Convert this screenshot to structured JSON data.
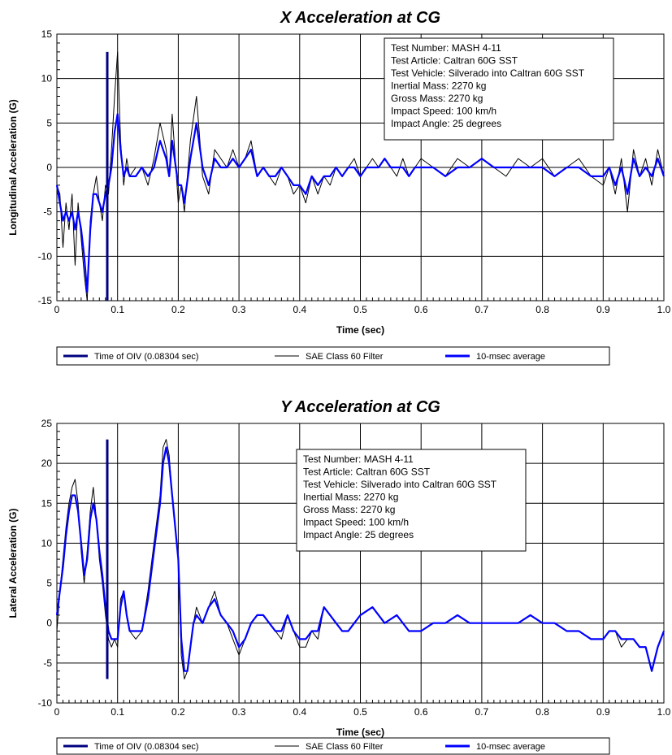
{
  "chart_data": [
    {
      "type": "line",
      "title": "X Acceleration at CG",
      "xlabel": "Time (sec)",
      "ylabel": "Longitudinal Acceleration (G)",
      "xlim": [
        0,
        1.0
      ],
      "ylim": [
        -15,
        15
      ],
      "xticks": [
        "0",
        "0.1",
        "0.2",
        "0.3",
        "0.4",
        "0.5",
        "0.6",
        "0.7",
        "0.8",
        "0.9",
        "1.0"
      ],
      "yticks": [
        "-15",
        "-10",
        "-5",
        "0",
        "5",
        "10",
        "15"
      ],
      "grid": true,
      "legend_placement": "bottom",
      "info_box": [
        "Test Number: MASH 4-11",
        "Test Article: Caltran 60G SST",
        "Test Vehicle: Silverado into Caltran 60G SST",
        "Inertial Mass: 2270 kg",
        "Gross Mass: 2270 kg",
        "Impact Speed: 100 km/h",
        "Impact Angle: 25 degrees"
      ],
      "series": [
        {
          "name": "Time of OIV (0.08304 sec)",
          "color": "#000080",
          "x": [
            0.083,
            0.083
          ],
          "y": [
            -15,
            13
          ]
        },
        {
          "name": "SAE Class 60 Filter",
          "color": "#000000",
          "x": [
            0,
            0.005,
            0.01,
            0.015,
            0.02,
            0.025,
            0.03,
            0.035,
            0.04,
            0.045,
            0.05,
            0.055,
            0.06,
            0.065,
            0.07,
            0.075,
            0.08,
            0.085,
            0.09,
            0.095,
            0.1,
            0.105,
            0.11,
            0.115,
            0.12,
            0.13,
            0.14,
            0.15,
            0.16,
            0.17,
            0.18,
            0.185,
            0.19,
            0.2,
            0.205,
            0.21,
            0.22,
            0.23,
            0.24,
            0.25,
            0.26,
            0.27,
            0.28,
            0.29,
            0.3,
            0.31,
            0.32,
            0.33,
            0.34,
            0.35,
            0.36,
            0.37,
            0.38,
            0.39,
            0.4,
            0.41,
            0.42,
            0.43,
            0.44,
            0.45,
            0.46,
            0.47,
            0.48,
            0.49,
            0.5,
            0.51,
            0.52,
            0.53,
            0.54,
            0.55,
            0.56,
            0.57,
            0.58,
            0.59,
            0.6,
            0.62,
            0.64,
            0.66,
            0.68,
            0.7,
            0.72,
            0.74,
            0.76,
            0.78,
            0.8,
            0.82,
            0.84,
            0.86,
            0.88,
            0.9,
            0.91,
            0.92,
            0.93,
            0.94,
            0.95,
            0.96,
            0.97,
            0.98,
            0.99,
            1.0
          ],
          "y": [
            -2,
            -3,
            -9,
            -4,
            -7,
            -3,
            -11,
            -4,
            -8,
            -12,
            -15,
            -6,
            -3,
            -1,
            -4,
            -6,
            -2,
            -3,
            2,
            8,
            13,
            3,
            -2,
            1,
            -1,
            0,
            0,
            -2,
            1,
            5,
            2,
            -1,
            6,
            -4,
            -2,
            -5,
            3,
            8,
            -1,
            -3,
            2,
            1,
            0,
            2,
            0,
            1,
            3,
            -1,
            0,
            -1,
            -2,
            0,
            -1,
            -3,
            -2,
            -4,
            -1,
            -3,
            -1,
            -2,
            0,
            -1,
            0,
            1,
            -1,
            0,
            1,
            0,
            1,
            0,
            -1,
            1,
            -1,
            0,
            1,
            0,
            -1,
            1,
            0,
            1,
            0,
            -1,
            1,
            0,
            1,
            -1,
            0,
            1,
            -1,
            -2,
            0,
            -3,
            1,
            -5,
            2,
            -1,
            1,
            -2,
            2,
            -1
          ]
        },
        {
          "name": "10-msec average",
          "color": "#0000ff",
          "x": [
            0,
            0.005,
            0.01,
            0.015,
            0.02,
            0.025,
            0.03,
            0.035,
            0.04,
            0.045,
            0.05,
            0.055,
            0.06,
            0.065,
            0.07,
            0.075,
            0.08,
            0.085,
            0.09,
            0.095,
            0.1,
            0.105,
            0.11,
            0.115,
            0.12,
            0.13,
            0.14,
            0.15,
            0.16,
            0.17,
            0.18,
            0.185,
            0.19,
            0.2,
            0.205,
            0.21,
            0.22,
            0.23,
            0.24,
            0.25,
            0.26,
            0.27,
            0.28,
            0.29,
            0.3,
            0.31,
            0.32,
            0.33,
            0.34,
            0.35,
            0.36,
            0.37,
            0.38,
            0.39,
            0.4,
            0.41,
            0.42,
            0.43,
            0.44,
            0.45,
            0.46,
            0.47,
            0.48,
            0.49,
            0.5,
            0.51,
            0.52,
            0.53,
            0.54,
            0.55,
            0.56,
            0.57,
            0.58,
            0.59,
            0.6,
            0.62,
            0.64,
            0.66,
            0.68,
            0.7,
            0.72,
            0.74,
            0.76,
            0.78,
            0.8,
            0.82,
            0.84,
            0.86,
            0.88,
            0.9,
            0.91,
            0.92,
            0.93,
            0.94,
            0.95,
            0.96,
            0.97,
            0.98,
            0.99,
            1.0
          ],
          "y": [
            -2,
            -4,
            -6,
            -5,
            -6,
            -5,
            -7,
            -5,
            -7,
            -10,
            -14,
            -7,
            -3,
            -3,
            -4,
            -5,
            -3,
            -2,
            0,
            4,
            6,
            2,
            -1,
            0,
            -1,
            -1,
            0,
            -1,
            0,
            3,
            1,
            -1,
            3,
            -2,
            -2,
            -4,
            1,
            5,
            0,
            -2,
            1,
            0,
            0,
            1,
            0,
            1,
            2,
            -1,
            0,
            -1,
            -1,
            0,
            -1,
            -2,
            -2,
            -3,
            -1,
            -2,
            -1,
            -1,
            0,
            -1,
            0,
            0,
            -1,
            0,
            0,
            0,
            1,
            0,
            0,
            0,
            -1,
            0,
            0,
            0,
            -1,
            0,
            0,
            1,
            0,
            0,
            0,
            0,
            0,
            -1,
            0,
            0,
            -1,
            -1,
            0,
            -2,
            0,
            -3,
            1,
            -1,
            0,
            -1,
            1,
            -1
          ]
        }
      ]
    },
    {
      "type": "line",
      "title": "Y Acceleration at CG",
      "xlabel": "Time (sec)",
      "ylabel": "Lateral Acceleration (G)",
      "xlim": [
        0,
        1.0
      ],
      "ylim": [
        -10,
        25
      ],
      "xticks": [
        "0",
        "0.1",
        "0.2",
        "0.3",
        "0.4",
        "0.5",
        "0.6",
        "0.7",
        "0.8",
        "0.9",
        "1.0"
      ],
      "yticks": [
        "-10",
        "-5",
        "0",
        "5",
        "10",
        "15",
        "20",
        "25"
      ],
      "grid": true,
      "legend_placement": "bottom",
      "info_box": [
        "Test Number: MASH 4-11",
        "Test Article: Caltran 60G SST",
        "Test Vehicle: Silverado into Caltran 60G SST",
        "Inertial Mass: 2270 kg",
        "Gross Mass: 2270 kg",
        "Impact Speed: 100 km/h",
        "Impact Angle: 25 degrees"
      ],
      "series": [
        {
          "name": "Time of OIV (0.08304 sec)",
          "color": "#000080",
          "x": [
            0.083,
            0.083
          ],
          "y": [
            -7,
            23
          ]
        },
        {
          "name": "SAE Class 60 Filter",
          "color": "#000000",
          "x": [
            0,
            0.005,
            0.01,
            0.015,
            0.02,
            0.025,
            0.03,
            0.035,
            0.04,
            0.045,
            0.05,
            0.055,
            0.06,
            0.065,
            0.07,
            0.075,
            0.08,
            0.085,
            0.09,
            0.095,
            0.1,
            0.105,
            0.11,
            0.115,
            0.12,
            0.13,
            0.14,
            0.15,
            0.16,
            0.17,
            0.175,
            0.18,
            0.185,
            0.19,
            0.2,
            0.205,
            0.21,
            0.215,
            0.22,
            0.225,
            0.23,
            0.24,
            0.25,
            0.26,
            0.27,
            0.28,
            0.29,
            0.3,
            0.31,
            0.32,
            0.33,
            0.34,
            0.35,
            0.36,
            0.37,
            0.38,
            0.39,
            0.4,
            0.41,
            0.42,
            0.43,
            0.44,
            0.45,
            0.46,
            0.47,
            0.48,
            0.49,
            0.5,
            0.52,
            0.54,
            0.56,
            0.58,
            0.6,
            0.62,
            0.64,
            0.66,
            0.68,
            0.7,
            0.72,
            0.74,
            0.76,
            0.78,
            0.8,
            0.82,
            0.84,
            0.86,
            0.88,
            0.9,
            0.91,
            0.92,
            0.93,
            0.94,
            0.95,
            0.96,
            0.97,
            0.98,
            0.99,
            1.0
          ],
          "y": [
            -1,
            4,
            8,
            12,
            15,
            17,
            18,
            15,
            9,
            5,
            9,
            14,
            17,
            13,
            8,
            5,
            1,
            -2,
            -3,
            -2,
            -3,
            3,
            4,
            1,
            -1,
            -2,
            -1,
            4,
            10,
            16,
            22,
            23,
            21,
            16,
            8,
            -4,
            -7,
            -6,
            -3,
            0,
            2,
            0,
            2,
            4,
            1,
            0,
            -2,
            -4,
            -2,
            0,
            1,
            1,
            0,
            -1,
            -2,
            1,
            -1,
            -3,
            -3,
            -1,
            -2,
            2,
            1,
            0,
            -1,
            -1,
            0,
            1,
            2,
            0,
            1,
            -1,
            -1,
            0,
            0,
            1,
            0,
            0,
            0,
            0,
            0,
            1,
            0,
            0,
            -1,
            -1,
            -2,
            -2,
            -1,
            -1,
            -3,
            -2,
            -2,
            -3,
            -3,
            -6,
            -3,
            -1
          ]
        },
        {
          "name": "10-msec average",
          "color": "#0000ff",
          "x": [
            0,
            0.005,
            0.01,
            0.015,
            0.02,
            0.025,
            0.03,
            0.035,
            0.04,
            0.045,
            0.05,
            0.055,
            0.06,
            0.065,
            0.07,
            0.075,
            0.08,
            0.085,
            0.09,
            0.095,
            0.1,
            0.105,
            0.11,
            0.115,
            0.12,
            0.13,
            0.14,
            0.15,
            0.16,
            0.17,
            0.175,
            0.18,
            0.185,
            0.19,
            0.2,
            0.205,
            0.21,
            0.215,
            0.22,
            0.225,
            0.23,
            0.24,
            0.25,
            0.26,
            0.27,
            0.28,
            0.29,
            0.3,
            0.31,
            0.32,
            0.33,
            0.34,
            0.35,
            0.36,
            0.37,
            0.38,
            0.39,
            0.4,
            0.41,
            0.42,
            0.43,
            0.44,
            0.45,
            0.46,
            0.47,
            0.48,
            0.49,
            0.5,
            0.52,
            0.54,
            0.56,
            0.58,
            0.6,
            0.62,
            0.64,
            0.66,
            0.68,
            0.7,
            0.72,
            0.74,
            0.76,
            0.78,
            0.8,
            0.82,
            0.84,
            0.86,
            0.88,
            0.9,
            0.91,
            0.92,
            0.93,
            0.94,
            0.95,
            0.96,
            0.97,
            0.98,
            0.99,
            1.0
          ],
          "y": [
            1,
            4,
            7,
            11,
            14,
            16,
            16,
            14,
            10,
            6,
            8,
            13,
            15,
            13,
            9,
            6,
            2,
            -1,
            -2,
            -2,
            -2,
            2,
            4,
            1,
            -1,
            -1,
            -1,
            3,
            9,
            15,
            20,
            22,
            20,
            16,
            8,
            -2,
            -6,
            -6,
            -3,
            0,
            1,
            0,
            2,
            3,
            1,
            0,
            -1,
            -3,
            -2,
            0,
            1,
            1,
            0,
            -1,
            -1,
            1,
            -1,
            -2,
            -2,
            -1,
            -1,
            2,
            1,
            0,
            -1,
            -1,
            0,
            1,
            2,
            0,
            1,
            -1,
            -1,
            0,
            0,
            1,
            0,
            0,
            0,
            0,
            0,
            1,
            0,
            0,
            -1,
            -1,
            -2,
            -2,
            -1,
            -1,
            -2,
            -2,
            -2,
            -3,
            -3,
            -6,
            -3,
            -1
          ]
        }
      ]
    }
  ]
}
